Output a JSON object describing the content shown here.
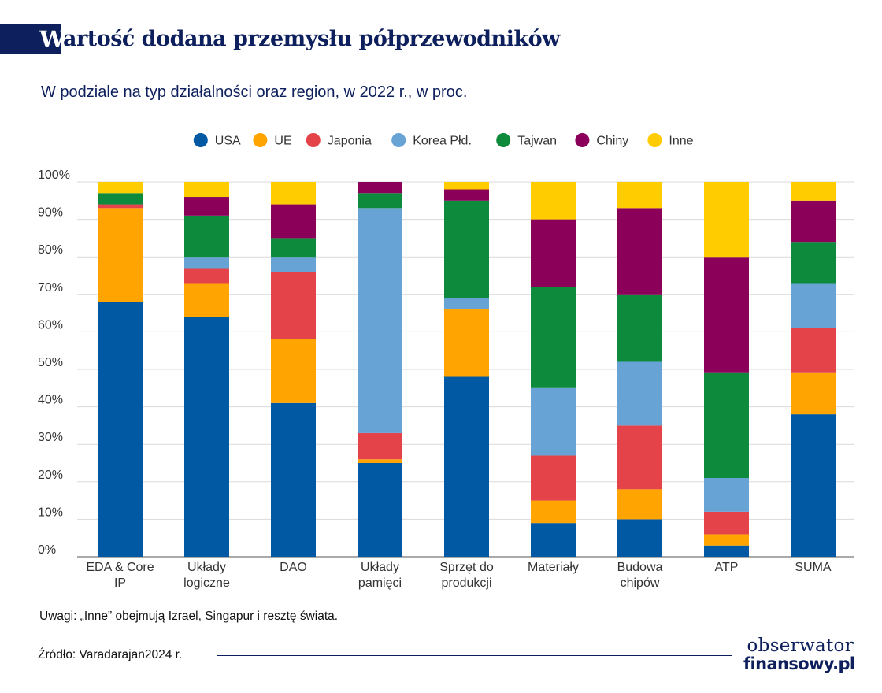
{
  "header": {
    "title_initial": "W",
    "title_rest": "artość dodana przemysłu półprzewodników",
    "subtitle": "W podziale na typ działalności oraz region, w 2022 r., w proc."
  },
  "colors": {
    "USA": "#0059a2",
    "UE": "#ffa400",
    "Japonia": "#e5434a",
    "Korea Płd.": "#68a3d6",
    "Tajwan": "#0d8a3c",
    "Chiny": "#8b0059",
    "Inne": "#ffcc00",
    "navy": "#0d1f5c"
  },
  "chart_data": {
    "type": "bar",
    "stacked": true,
    "title": "Wartość dodana przemysłu półprzewodników",
    "subtitle": "W podziale na typ działalności oraz region, w 2022 r., w proc.",
    "ylim": [
      0,
      100
    ],
    "yticks": [
      "0%",
      "10%",
      "20%",
      "30%",
      "40%",
      "50%",
      "60%",
      "70%",
      "80%",
      "90%",
      "100%"
    ],
    "legend_position": "top-center",
    "categories": [
      [
        "EDA & Core",
        "IP"
      ],
      [
        "Układy",
        "logiczne"
      ],
      [
        "DAO"
      ],
      [
        "Układy",
        "pamięci"
      ],
      [
        "Sprzęt do",
        "produkcji"
      ],
      [
        "Materiały"
      ],
      [
        "Budowa",
        "chipów"
      ],
      [
        "ATP"
      ],
      [
        "SUMA"
      ]
    ],
    "series": [
      {
        "name": "USA",
        "values": [
          68,
          64,
          41,
          25,
          48,
          9,
          10,
          3,
          38
        ]
      },
      {
        "name": "UE",
        "values": [
          25,
          9,
          17,
          1,
          18,
          6,
          8,
          3,
          11
        ]
      },
      {
        "name": "Japonia",
        "values": [
          1,
          4,
          18,
          7,
          0,
          12,
          17,
          6,
          12
        ]
      },
      {
        "name": "Korea Płd.",
        "values": [
          0,
          3,
          4,
          60,
          3,
          18,
          17,
          9,
          12
        ]
      },
      {
        "name": "Tajwan",
        "values": [
          3,
          11,
          5,
          4,
          26,
          27,
          18,
          28,
          11
        ]
      },
      {
        "name": "Chiny",
        "values": [
          0,
          5,
          9,
          3,
          3,
          18,
          23,
          31,
          11
        ]
      },
      {
        "name": "Inne",
        "values": [
          3,
          4,
          6,
          0,
          2,
          10,
          7,
          20,
          5
        ]
      }
    ]
  },
  "footer": {
    "note": "Uwagi: „Inne” obejmują Izrael, Singapur i resztę świata.",
    "source": "Źródło: Varadarajan2024 r.",
    "logo_top": "obserwator",
    "logo_bottom": "finansowy.pl"
  }
}
